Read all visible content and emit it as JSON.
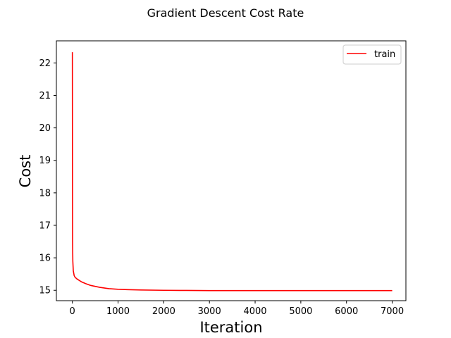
{
  "chart_data": {
    "type": "line",
    "title": "Gradient Descent Cost Rate",
    "xlabel": "Iteration",
    "ylabel": "Cost",
    "xlim": [
      -350,
      7300
    ],
    "ylim": [
      14.68,
      22.68
    ],
    "xticks": [
      0,
      1000,
      2000,
      3000,
      4000,
      5000,
      6000,
      7000
    ],
    "yticks": [
      15,
      16,
      17,
      18,
      19,
      20,
      21,
      22
    ],
    "grid": false,
    "legend_position": "top-right",
    "series": [
      {
        "name": "train",
        "color": "#ff0000",
        "x": [
          0,
          2,
          5,
          10,
          20,
          40,
          60,
          100,
          200,
          300,
          400,
          500,
          600,
          800,
          1000,
          1200,
          1500,
          2000,
          2500,
          3000,
          4000,
          5000,
          6000,
          7000
        ],
        "y": [
          22.33,
          19.0,
          16.5,
          15.9,
          15.6,
          15.45,
          15.4,
          15.35,
          15.26,
          15.2,
          15.15,
          15.12,
          15.09,
          15.05,
          15.03,
          15.02,
          15.01,
          15.0,
          14.995,
          14.99,
          14.99,
          14.99,
          14.99,
          14.99
        ]
      }
    ]
  }
}
